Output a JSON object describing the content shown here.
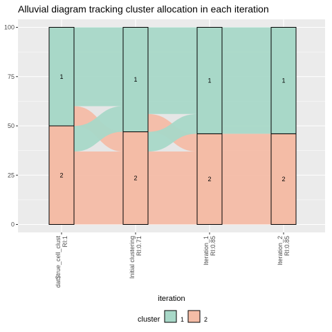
{
  "chart_data": {
    "type": "alluvial",
    "title": "Alluvial diagram tracking cluster allocation in each iteration",
    "xlabel": "iteration",
    "ylabel": "",
    "ylim": [
      0,
      100
    ],
    "yticks": [
      0,
      25,
      50,
      75,
      100
    ],
    "categories": [
      "dat$true_cell_clust\nRI:1",
      "Initial clustering\nRI:0.71",
      "Iteration_1\nRI:0.85",
      "Iteration_2\nRI:0.85"
    ],
    "strata": [
      [
        {
          "cluster": "1",
          "value": 50
        },
        {
          "cluster": "2",
          "value": 50
        }
      ],
      [
        {
          "cluster": "1",
          "value": 53
        },
        {
          "cluster": "2",
          "value": 47
        }
      ],
      [
        {
          "cluster": "1",
          "value": 54
        },
        {
          "cluster": "2",
          "value": 46
        }
      ],
      [
        {
          "cluster": "1",
          "value": 54
        },
        {
          "cluster": "2",
          "value": 46
        }
      ]
    ],
    "flows": [
      {
        "segment": 0,
        "from": "1",
        "to": "1",
        "value": 40
      },
      {
        "segment": 0,
        "from": "1",
        "to": "2",
        "value": 10
      },
      {
        "segment": 0,
        "from": "2",
        "to": "1",
        "value": 13
      },
      {
        "segment": 0,
        "from": "2",
        "to": "2",
        "value": 37
      },
      {
        "segment": 1,
        "from": "1",
        "to": "1",
        "value": 44
      },
      {
        "segment": 1,
        "from": "1",
        "to": "2",
        "value": 9
      },
      {
        "segment": 1,
        "from": "2",
        "to": "1",
        "value": 10
      },
      {
        "segment": 1,
        "from": "2",
        "to": "2",
        "value": 37
      },
      {
        "segment": 2,
        "from": "1",
        "to": "1",
        "value": 54
      },
      {
        "segment": 2,
        "from": "2",
        "to": "2",
        "value": 46
      }
    ],
    "legend": {
      "title": "cluster",
      "position": "bottom",
      "entries": [
        {
          "label": "1",
          "color": "#a8d8c8"
        },
        {
          "label": "2",
          "color": "#f4bca6"
        }
      ]
    },
    "colors": {
      "1": "#a8d8c8",
      "2": "#f4bca6",
      "mixed": "#e6e6e6",
      "panel": "#ebebeb",
      "grid": "#ffffff"
    },
    "grid": true
  }
}
